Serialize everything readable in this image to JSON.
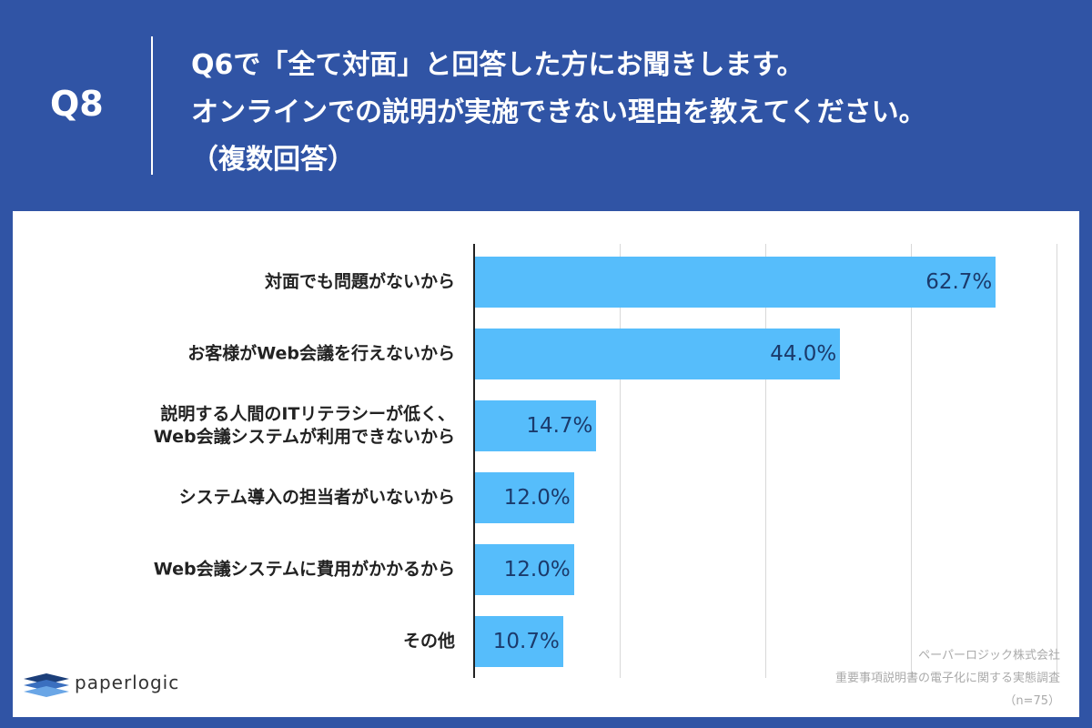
{
  "chart_data": {
    "type": "bar",
    "orientation": "horizontal",
    "question_label": "Q8",
    "title": "Q6で「全て対面」と回答した方にお聞きします。\nオンラインでの説明が実施できない理由を教えてください。\n（複数回答）",
    "categories": [
      "対面でも問題がないから",
      "お客様がWeb会議を行えないから",
      "説明する人間のITリテラシーが低く、\nWeb会議システムが利用できないから",
      "システム導入の担当者がいないから",
      "Web会議システムに費用がかかるから",
      "その他"
    ],
    "values": [
      62.7,
      44.0,
      14.7,
      12.0,
      12.0,
      10.7
    ],
    "value_labels": [
      "62.7%",
      "44.0%",
      "14.7%",
      "12.0%",
      "12.0%",
      "10.7%"
    ],
    "color": "#56bdfb",
    "xlim": [
      0,
      70
    ],
    "grid": true,
    "logo": "paperlogic",
    "source": [
      "ペーパーロジック株式会社",
      "重要事項説明書の電子化に関する実態調査",
      "（n=75）"
    ]
  }
}
